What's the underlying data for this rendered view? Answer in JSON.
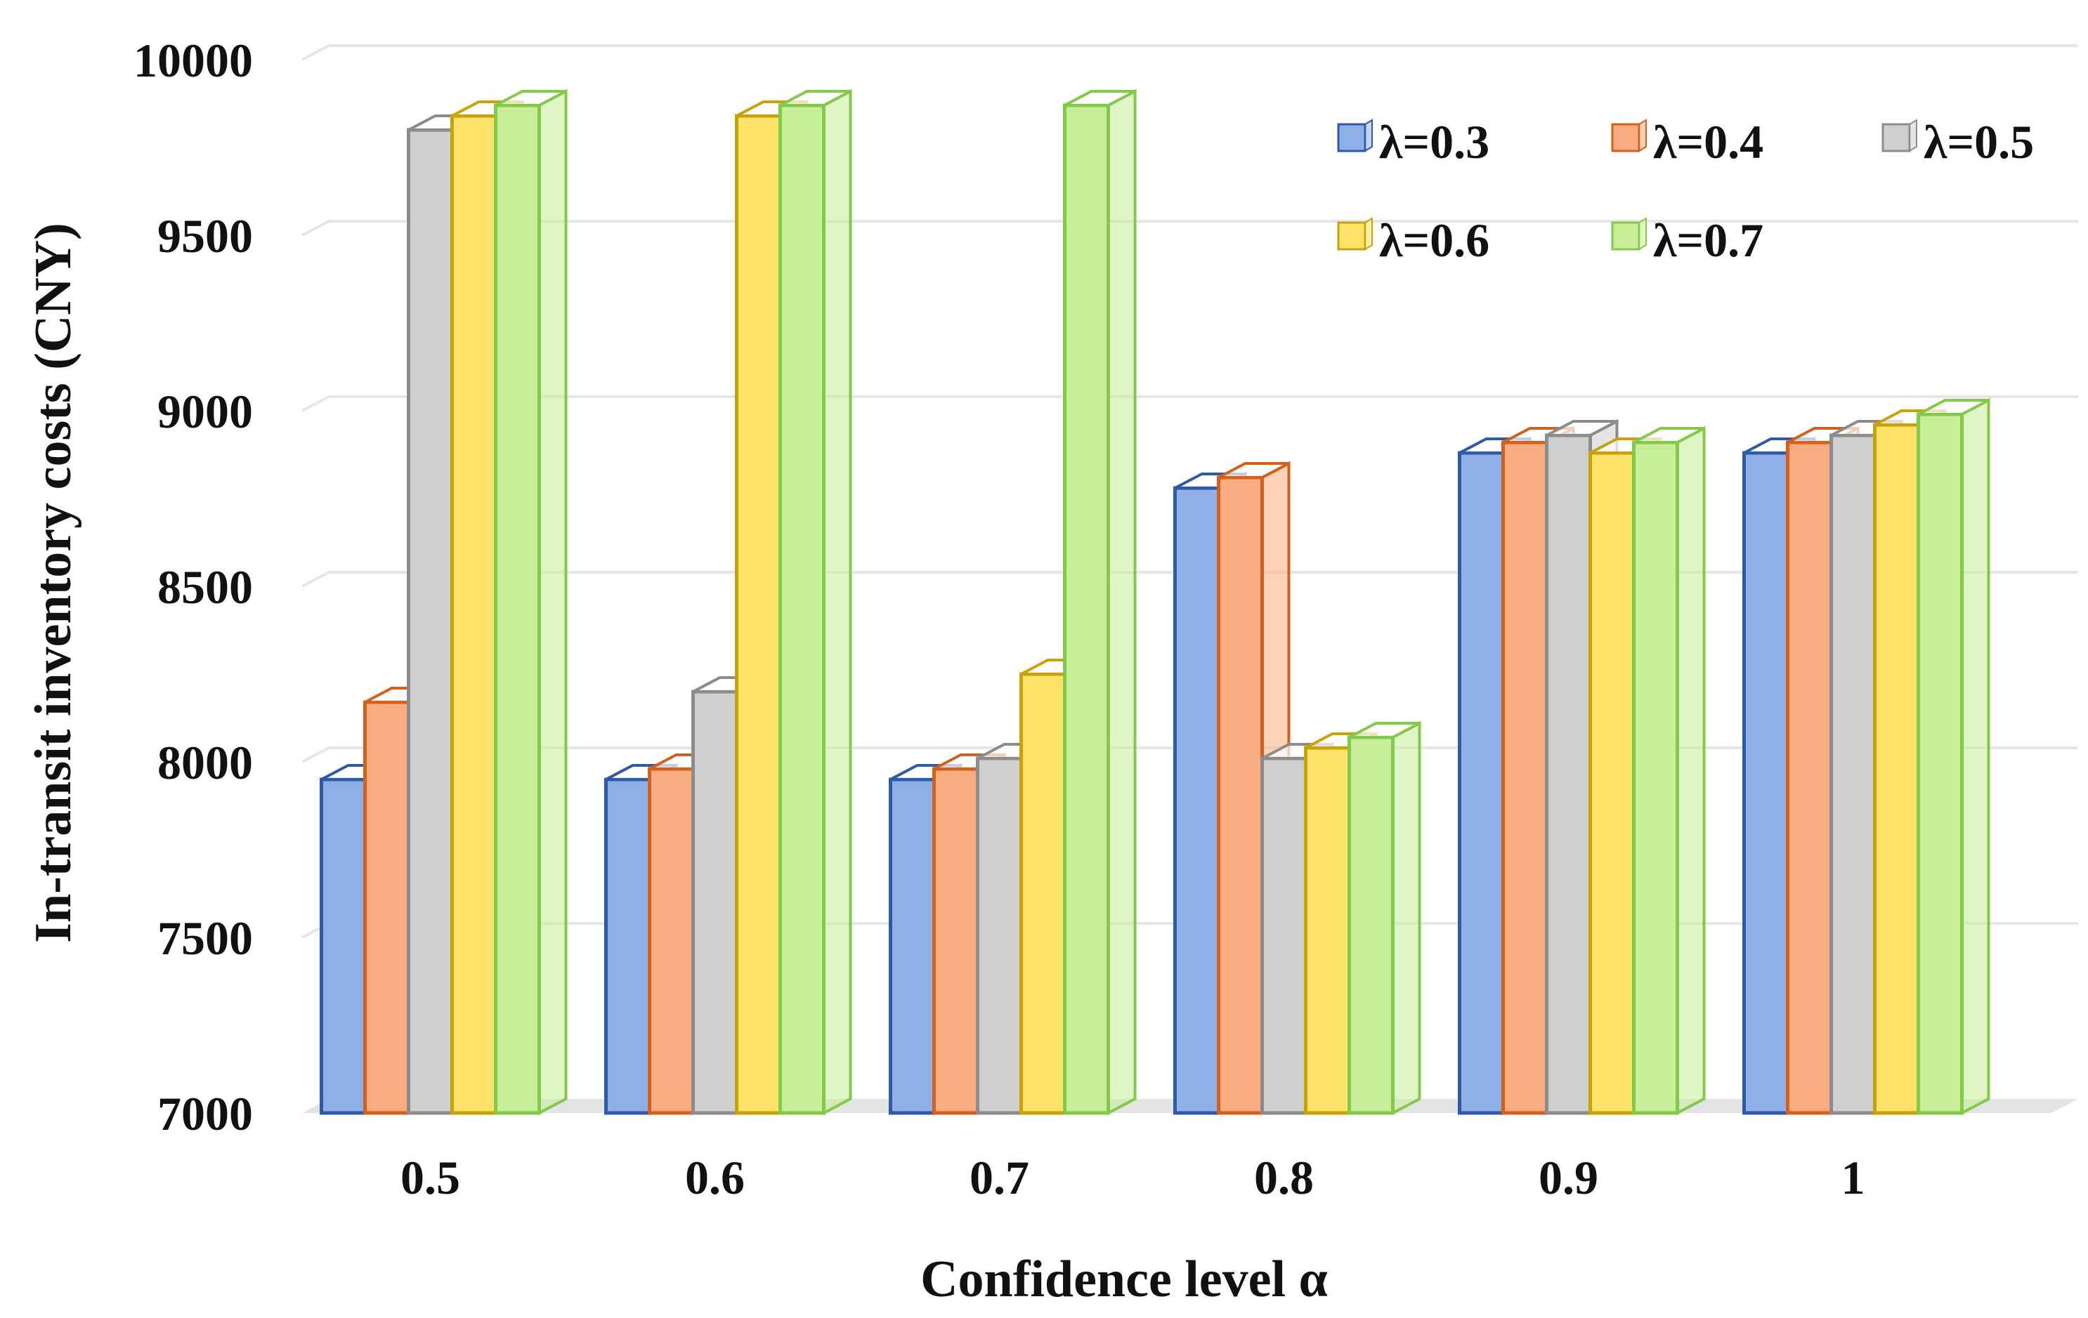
{
  "chart_data": {
    "type": "bar",
    "style": "3d-clustered-column",
    "xlabel": "Confidence level α",
    "ylabel": "In-transit inventory costs (CNY)",
    "categories": [
      "0.5",
      "0.6",
      "0.7",
      "0.8",
      "0.9",
      "1"
    ],
    "ylim": [
      7000,
      10000
    ],
    "yticks": [
      "7000",
      "7500",
      "8000",
      "8500",
      "9000",
      "9500",
      "10000"
    ],
    "grid": true,
    "legend_position": "top-right",
    "series": [
      {
        "name": "λ=0.3",
        "color": "#8fb0e6",
        "edge": "#2f5aa8",
        "values": [
          7950,
          7950,
          7950,
          8780,
          8880,
          8880
        ]
      },
      {
        "name": "λ=0.4",
        "color": "#f9ad80",
        "edge": "#d4601b",
        "values": [
          8170,
          7980,
          7980,
          8810,
          8910,
          8910
        ]
      },
      {
        "name": "λ=0.5",
        "color": "#cfcfcf",
        "edge": "#8c8c8c",
        "values": [
          9800,
          8200,
          8010,
          8010,
          8930,
          8930
        ]
      },
      {
        "name": "λ=0.6",
        "color": "#fde36a",
        "edge": "#c9a20a",
        "values": [
          9840,
          9840,
          8250,
          8040,
          8880,
          8960
        ]
      },
      {
        "name": "λ=0.7",
        "color": "#c9ee99",
        "edge": "#83c94a",
        "values": [
          9870,
          9870,
          9870,
          8070,
          8910,
          8990
        ]
      }
    ]
  }
}
